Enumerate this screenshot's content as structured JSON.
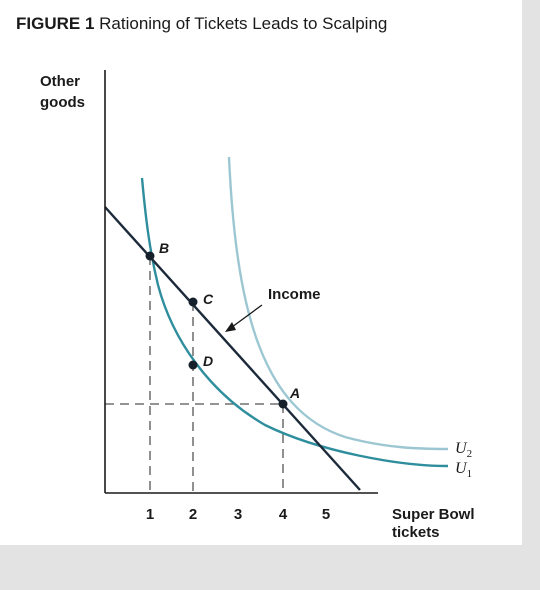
{
  "figure": {
    "number": "FIGURE 1",
    "title": "Rationing of Tickets Leads to Scalping"
  },
  "axes": {
    "y_label": [
      "Other",
      "goods"
    ],
    "x_label": [
      "Super Bowl",
      "tickets"
    ],
    "x_ticks": [
      "1",
      "2",
      "3",
      "4",
      "5"
    ]
  },
  "curves": {
    "budget_line": {
      "label": "Income",
      "color": "#1c2a3a"
    },
    "u1": {
      "name": "U",
      "sub": "1",
      "color": "#2f8e9d"
    },
    "u2": {
      "name": "U",
      "sub": "2",
      "color": "#9cc7d2"
    }
  },
  "points": [
    {
      "label": "B",
      "x": 1
    },
    {
      "label": "C",
      "x": 2
    },
    {
      "label": "D",
      "x": 2
    },
    {
      "label": "A",
      "x": 4
    }
  ],
  "colors": {
    "axis": "#1a1a1a",
    "dashed": "#555555",
    "point": "#15202b"
  }
}
